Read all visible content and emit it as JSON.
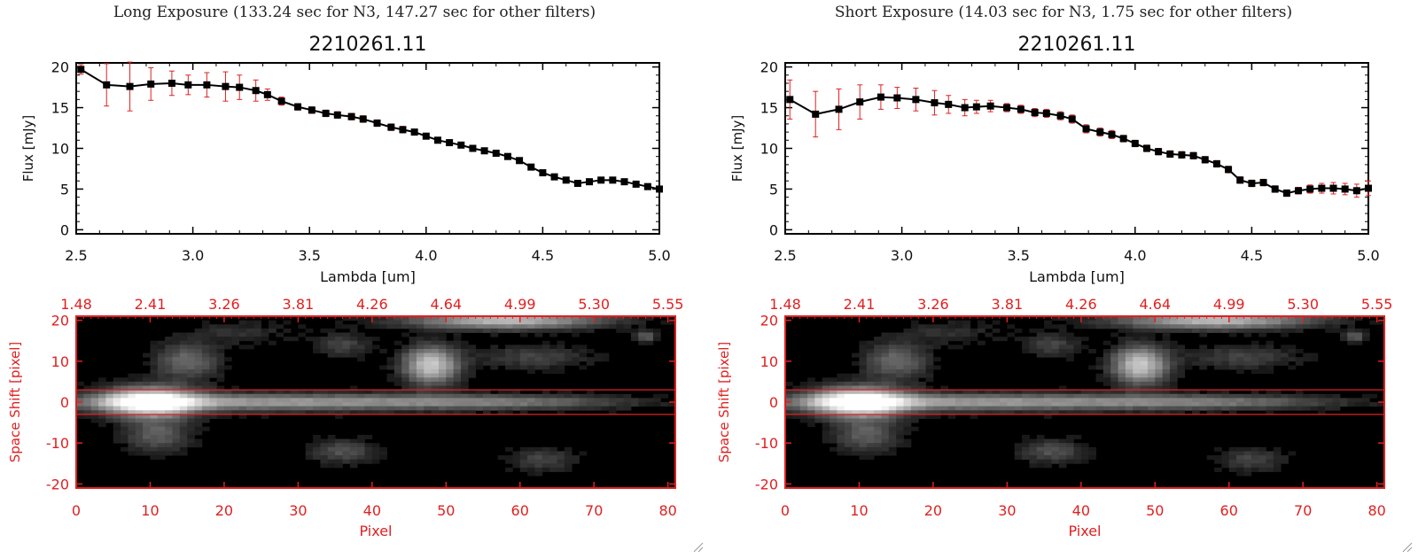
{
  "panels": [
    {
      "title": "Long Exposure (133.24 sec for N3, 147.27 sec for other filters)",
      "spectrum": {
        "title": "2210261.11",
        "xlabel": "Lambda [um]",
        "ylabel": "Flux [mJy]",
        "xticks": [
          "2.5",
          "3.0",
          "3.5",
          "4.0",
          "4.5",
          "5.0"
        ],
        "yticks": [
          "0",
          "5",
          "10",
          "15",
          "20"
        ]
      },
      "image": {
        "ylabel": "Space Shift [pixel]",
        "xlabel": "Pixel",
        "top_ticks": [
          "1.48",
          "2.41",
          "3.26",
          "3.81",
          "4.26",
          "4.64",
          "4.99",
          "5.30",
          "5.55"
        ],
        "bottom_ticks": [
          "0",
          "10",
          "20",
          "30",
          "40",
          "50",
          "60",
          "70",
          "80"
        ],
        "left_ticks": [
          "20",
          "10",
          "0",
          "-10",
          "-20"
        ]
      }
    },
    {
      "title": "Short Exposure (14.03 sec for N3, 1.75 sec for other filters)",
      "spectrum": {
        "title": "2210261.11",
        "xlabel": "Lambda [um]",
        "ylabel": "Flux [mJy]",
        "xticks": [
          "2.5",
          "3.0",
          "3.5",
          "4.0",
          "4.5",
          "5.0"
        ],
        "yticks": [
          "0",
          "5",
          "10",
          "15",
          "20"
        ]
      },
      "image": {
        "ylabel": "Space Shift [pixel]",
        "xlabel": "Pixel",
        "top_ticks": [
          "1.48",
          "2.41",
          "3.26",
          "3.81",
          "4.26",
          "4.64",
          "4.99",
          "5.30",
          "5.55"
        ],
        "bottom_ticks": [
          "0",
          "10",
          "20",
          "30",
          "40",
          "50",
          "60",
          "70",
          "80"
        ],
        "left_ticks": [
          "20",
          "10",
          "0",
          "-10",
          "-20"
        ]
      }
    }
  ],
  "colors": {
    "axis": "#000000",
    "marker": "#000000",
    "error_bar": "#e02020",
    "image_axis": "#e02020",
    "aperture_line": "#e02020"
  },
  "chart_data": [
    {
      "type": "line",
      "title": "2210261.11",
      "xlabel": "Lambda [um]",
      "ylabel": "Flux [mJy]",
      "xlim": [
        2.5,
        5.0
      ],
      "ylim": [
        -0.5,
        20.5
      ],
      "series": [
        {
          "x": [
            2.52,
            2.63,
            2.73,
            2.82,
            2.91,
            2.98,
            3.06,
            3.14,
            3.2,
            3.27,
            3.32,
            3.38,
            3.45,
            3.51,
            3.57,
            3.62,
            3.68,
            3.73,
            3.79,
            3.85,
            3.9,
            3.95,
            4.0,
            4.05,
            4.1,
            4.15,
            4.2,
            4.25,
            4.3,
            4.35,
            4.4,
            4.45,
            4.5,
            4.55,
            4.6,
            4.65,
            4.7,
            4.75,
            4.8,
            4.85,
            4.9,
            4.95,
            5.0
          ],
          "y": [
            19.7,
            17.8,
            17.6,
            17.9,
            18.0,
            17.8,
            17.8,
            17.6,
            17.5,
            17.1,
            16.6,
            15.8,
            15.1,
            14.7,
            14.3,
            14.1,
            13.9,
            13.6,
            13.1,
            12.6,
            12.3,
            12.0,
            11.5,
            11.0,
            10.7,
            10.4,
            10.0,
            9.7,
            9.4,
            9.0,
            8.5,
            7.7,
            7.0,
            6.5,
            6.1,
            5.7,
            5.9,
            6.1,
            6.1,
            5.9,
            5.6,
            5.3,
            5.0
          ],
          "error": [
            0.6,
            2.6,
            3.0,
            2.0,
            1.5,
            1.2,
            1.5,
            1.8,
            1.5,
            1.3,
            0.7,
            0.5,
            0.4,
            0.4,
            0.4,
            0.4,
            0.4,
            0.4,
            0.4,
            0.4,
            0.4,
            0.3,
            0.3,
            0.3,
            0.3,
            0.3,
            0.3,
            0.3,
            0.3,
            0.3,
            0.3,
            0.3,
            0.3,
            0.3,
            0.3,
            0.3,
            0.3,
            0.3,
            0.3,
            0.3,
            0.3,
            0.3,
            0.3
          ]
        }
      ]
    },
    {
      "type": "line",
      "title": "2210261.11",
      "xlabel": "Lambda [um]",
      "ylabel": "Flux [mJy]",
      "xlim": [
        2.5,
        5.0
      ],
      "ylim": [
        -0.5,
        20.5
      ],
      "series": [
        {
          "x": [
            2.52,
            2.63,
            2.73,
            2.82,
            2.91,
            2.98,
            3.06,
            3.14,
            3.2,
            3.27,
            3.32,
            3.38,
            3.45,
            3.51,
            3.57,
            3.62,
            3.68,
            3.73,
            3.79,
            3.85,
            3.9,
            3.95,
            4.0,
            4.05,
            4.1,
            4.15,
            4.2,
            4.25,
            4.3,
            4.35,
            4.4,
            4.45,
            4.5,
            4.55,
            4.6,
            4.65,
            4.7,
            4.75,
            4.8,
            4.85,
            4.9,
            4.95,
            5.0
          ],
          "y": [
            16.0,
            14.2,
            14.8,
            15.7,
            16.3,
            16.2,
            16.0,
            15.6,
            15.4,
            15.0,
            15.1,
            15.2,
            15.0,
            14.8,
            14.4,
            14.3,
            14.0,
            13.6,
            12.4,
            12.0,
            11.7,
            11.2,
            10.6,
            10.0,
            9.6,
            9.3,
            9.2,
            9.1,
            8.6,
            8.1,
            7.4,
            6.1,
            5.7,
            5.8,
            5.0,
            4.5,
            4.8,
            5.0,
            5.1,
            5.1,
            5.0,
            4.8,
            5.1
          ],
          "error": [
            2.4,
            2.8,
            2.5,
            2.1,
            1.5,
            1.3,
            1.4,
            1.5,
            1.1,
            1.0,
            0.8,
            0.7,
            0.5,
            0.5,
            0.5,
            0.5,
            0.5,
            0.5,
            0.5,
            0.5,
            0.5,
            0.4,
            0.4,
            0.4,
            0.4,
            0.4,
            0.4,
            0.4,
            0.4,
            0.4,
            0.4,
            0.4,
            0.4,
            0.4,
            0.4,
            0.4,
            0.4,
            0.5,
            0.6,
            0.7,
            0.7,
            0.8,
            0.9
          ]
        }
      ]
    },
    {
      "type": "heatmap",
      "xlabel": "Pixel",
      "ylabel": "Space Shift [pixel]",
      "xlim": [
        0,
        81
      ],
      "ylim": [
        -21,
        21
      ],
      "aperture_y": [
        -3,
        3
      ],
      "sources": [
        {
          "x": 10,
          "y": 0,
          "sx": 4.5,
          "sy": 2.5,
          "amp": 1.0
        },
        {
          "x": 25,
          "y": 0,
          "sx": 20,
          "sy": 1.4,
          "amp": 0.55
        },
        {
          "x": 58,
          "y": 0,
          "sx": 12,
          "sy": 1.2,
          "amp": 0.3
        },
        {
          "x": 48,
          "y": 9,
          "sx": 2.6,
          "sy": 3.2,
          "amp": 0.75
        },
        {
          "x": 58,
          "y": 20,
          "sx": 9,
          "sy": 1.5,
          "amp": 0.7
        },
        {
          "x": 15,
          "y": 10,
          "sx": 3,
          "sy": 3,
          "amp": 0.35
        },
        {
          "x": 11,
          "y": -8,
          "sx": 3,
          "sy": 3,
          "amp": 0.3
        },
        {
          "x": 36,
          "y": 14,
          "sx": 2.5,
          "sy": 2,
          "amp": 0.2
        },
        {
          "x": 36,
          "y": -12,
          "sx": 3,
          "sy": 2,
          "amp": 0.25
        },
        {
          "x": 63,
          "y": -14,
          "sx": 3,
          "sy": 2,
          "amp": 0.2
        },
        {
          "x": 77,
          "y": 16,
          "sx": 1,
          "sy": 1,
          "amp": 0.3
        },
        {
          "x": 62,
          "y": 11,
          "sx": 5,
          "sy": 2,
          "amp": 0.2
        },
        {
          "x": 22,
          "y": 17,
          "sx": 5,
          "sy": 2,
          "amp": 0.12
        }
      ]
    }
  ]
}
